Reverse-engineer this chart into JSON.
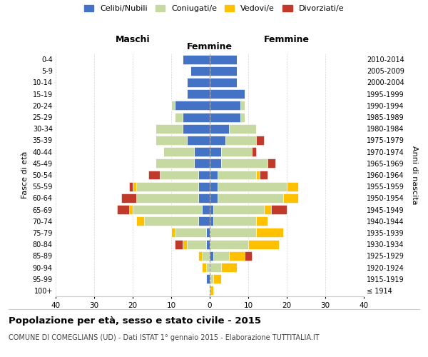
{
  "age_groups": [
    "100+",
    "95-99",
    "90-94",
    "85-89",
    "80-84",
    "75-79",
    "70-74",
    "65-69",
    "60-64",
    "55-59",
    "50-54",
    "45-49",
    "40-44",
    "35-39",
    "30-34",
    "25-29",
    "20-24",
    "15-19",
    "10-14",
    "5-9",
    "0-4"
  ],
  "birth_years": [
    "≤ 1914",
    "1915-1919",
    "1920-1924",
    "1925-1929",
    "1930-1934",
    "1935-1939",
    "1940-1944",
    "1945-1949",
    "1950-1954",
    "1955-1959",
    "1960-1964",
    "1965-1969",
    "1970-1974",
    "1975-1979",
    "1980-1984",
    "1985-1989",
    "1990-1994",
    "1995-1999",
    "2000-2004",
    "2005-2009",
    "2010-2014"
  ],
  "male": {
    "celibe": [
      0,
      1,
      0,
      0,
      1,
      1,
      3,
      2,
      3,
      3,
      3,
      4,
      4,
      6,
      7,
      7,
      9,
      6,
      6,
      5,
      7
    ],
    "coniugato": [
      0,
      0,
      1,
      2,
      5,
      8,
      14,
      18,
      16,
      16,
      10,
      10,
      8,
      8,
      7,
      2,
      1,
      0,
      0,
      0,
      0
    ],
    "vedovo": [
      0,
      0,
      1,
      1,
      1,
      1,
      2,
      1,
      0,
      1,
      0,
      0,
      0,
      0,
      0,
      0,
      0,
      0,
      0,
      0,
      0
    ],
    "divorziato": [
      0,
      0,
      0,
      0,
      2,
      0,
      0,
      3,
      4,
      1,
      3,
      0,
      0,
      0,
      0,
      0,
      0,
      0,
      0,
      0,
      0
    ]
  },
  "female": {
    "nubile": [
      0,
      0,
      0,
      1,
      0,
      0,
      1,
      1,
      2,
      2,
      2,
      3,
      3,
      4,
      5,
      8,
      8,
      9,
      7,
      7,
      7
    ],
    "coniugata": [
      0,
      1,
      3,
      4,
      10,
      12,
      11,
      13,
      17,
      18,
      10,
      12,
      8,
      8,
      7,
      1,
      1,
      0,
      0,
      0,
      0
    ],
    "vedova": [
      1,
      2,
      4,
      4,
      8,
      7,
      3,
      2,
      4,
      3,
      1,
      0,
      0,
      0,
      0,
      0,
      0,
      0,
      0,
      0,
      0
    ],
    "divorziata": [
      0,
      0,
      0,
      2,
      0,
      0,
      0,
      4,
      0,
      0,
      2,
      2,
      1,
      2,
      0,
      0,
      0,
      0,
      0,
      0,
      0
    ]
  },
  "colors": {
    "celibe": "#4472C4",
    "coniugato": "#c5d9a0",
    "vedovo": "#ffc000",
    "divorziato": "#c0392b"
  },
  "xlim": 40,
  "title": "Popolazione per età, sesso e stato civile - 2015",
  "subtitle": "COMUNE DI COMEGLIANS (UD) - Dati ISTAT 1° gennaio 2015 - Elaborazione TUTTITALIA.IT",
  "ylabel_left": "Fasce di età",
  "ylabel_right": "Anni di nascita",
  "xlabel_left": "Maschi",
  "xlabel_right": "Femmine",
  "bg_color": "#ffffff",
  "grid_color": "#cccccc"
}
